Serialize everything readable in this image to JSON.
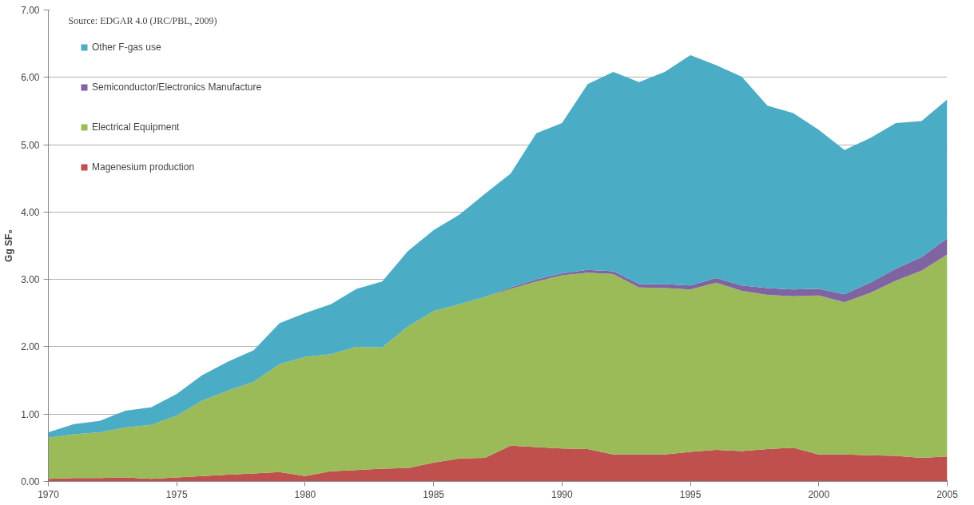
{
  "chart_data": {
    "type": "area",
    "stacked": true,
    "ylabel": "Gg SF₆",
    "annotations": [
      "Source: EDGAR 4.0 (JRC/PBL, 2009)"
    ],
    "x": [
      1970,
      1971,
      1972,
      1973,
      1974,
      1975,
      1976,
      1977,
      1978,
      1979,
      1980,
      1981,
      1982,
      1983,
      1984,
      1985,
      1986,
      1987,
      1988,
      1989,
      1990,
      1991,
      1992,
      1993,
      1994,
      1995,
      1996,
      1997,
      1998,
      1999,
      2000,
      2001,
      2002,
      2003,
      2004,
      2005
    ],
    "series": [
      {
        "name": "Magenesium production",
        "color": "#c0504d",
        "values": [
          0.04,
          0.05,
          0.05,
          0.06,
          0.04,
          0.06,
          0.08,
          0.1,
          0.12,
          0.14,
          0.08,
          0.15,
          0.17,
          0.19,
          0.2,
          0.28,
          0.34,
          0.35,
          0.53,
          0.51,
          0.49,
          0.48,
          0.4,
          0.4,
          0.4,
          0.44,
          0.47,
          0.45,
          0.48,
          0.5,
          0.4,
          0.4,
          0.39,
          0.38,
          0.35,
          0.37
        ]
      },
      {
        "name": "Electrical Equipment",
        "color": "#9bbb59",
        "values": [
          0.61,
          0.65,
          0.68,
          0.74,
          0.8,
          0.92,
          1.12,
          1.25,
          1.36,
          1.6,
          1.77,
          1.74,
          1.83,
          1.8,
          2.1,
          2.25,
          2.29,
          2.39,
          2.33,
          2.46,
          2.57,
          2.62,
          2.68,
          2.48,
          2.47,
          2.41,
          2.48,
          2.38,
          2.29,
          2.25,
          2.36,
          2.26,
          2.41,
          2.6,
          2.78,
          3.0
        ]
      },
      {
        "name": "Semiconductor/Electronics Manufacture",
        "color": "#8064a2",
        "values": [
          0,
          0,
          0,
          0,
          0,
          0,
          0,
          0,
          0,
          0,
          0,
          0,
          0,
          0,
          0,
          0,
          0,
          0,
          0.02,
          0.03,
          0.03,
          0.04,
          0.04,
          0.05,
          0.06,
          0.06,
          0.07,
          0.08,
          0.1,
          0.1,
          0.1,
          0.12,
          0.15,
          0.18,
          0.2,
          0.24
        ]
      },
      {
        "name": "Other F-gas use",
        "color": "#4bacc6",
        "values": [
          0.08,
          0.15,
          0.17,
          0.25,
          0.26,
          0.32,
          0.38,
          0.43,
          0.47,
          0.61,
          0.65,
          0.74,
          0.86,
          0.98,
          1.12,
          1.2,
          1.33,
          1.53,
          1.69,
          2.17,
          2.23,
          2.76,
          2.96,
          3.0,
          3.15,
          3.42,
          3.16,
          3.1,
          2.71,
          2.62,
          2.36,
          2.14,
          2.15,
          2.16,
          2.02,
          2.06
        ]
      }
    ],
    "xlim": [
      1970,
      2005
    ],
    "xticks": [
      1970,
      1975,
      1980,
      1985,
      1990,
      1995,
      2000,
      2005
    ],
    "ylim": [
      0,
      7
    ],
    "yticks": [
      {
        "value": 0,
        "label": "0.00"
      },
      {
        "value": 1,
        "label": "1.00"
      },
      {
        "value": 2,
        "label": "2.00"
      },
      {
        "value": 3,
        "label": "3.00"
      },
      {
        "value": 4,
        "label": "4.00"
      },
      {
        "value": 5,
        "label": "5.00"
      },
      {
        "value": 6,
        "label": "6.00"
      },
      {
        "value": 7,
        "label": "7.00"
      }
    ],
    "grid": "y",
    "legend": "top left"
  }
}
